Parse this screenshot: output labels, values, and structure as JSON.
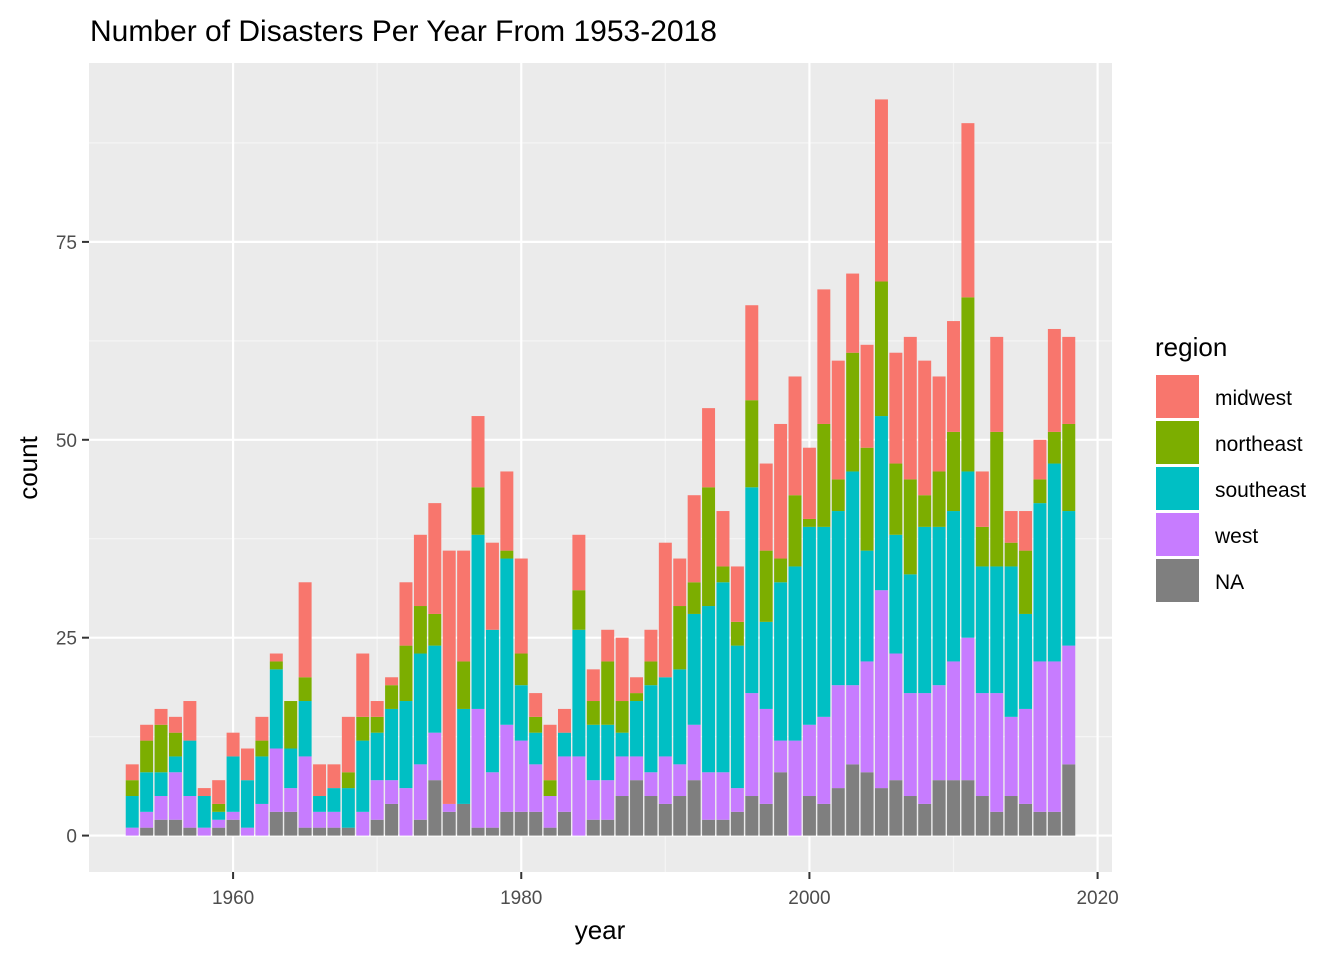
{
  "chart_data": {
    "type": "bar",
    "stacked": true,
    "title": "Number of Disasters Per Year From 1953-2018",
    "xlabel": "year",
    "ylabel": "count",
    "xlim": [
      1950,
      2021
    ],
    "ylim": [
      -4.6,
      97.6
    ],
    "x_ticks": [
      1960,
      1980,
      2000,
      2020
    ],
    "y_ticks": [
      0,
      25,
      50,
      75
    ],
    "grid": true,
    "legend": {
      "title": "region",
      "position": "right"
    },
    "series": [
      {
        "name": "NA",
        "color": "#7F7F7F"
      },
      {
        "name": "west",
        "color": "#C77CFF"
      },
      {
        "name": "southeast",
        "color": "#00BFC4"
      },
      {
        "name": "northeast",
        "color": "#7CAE00"
      },
      {
        "name": "midwest",
        "color": "#F8766D"
      }
    ],
    "legend_order": [
      "midwest",
      "northeast",
      "southeast",
      "west",
      "NA"
    ],
    "x": [
      1953,
      1954,
      1955,
      1956,
      1957,
      1958,
      1959,
      1960,
      1961,
      1962,
      1963,
      1964,
      1965,
      1966,
      1967,
      1968,
      1969,
      1970,
      1971,
      1972,
      1973,
      1974,
      1975,
      1976,
      1977,
      1978,
      1979,
      1980,
      1981,
      1982,
      1983,
      1984,
      1985,
      1986,
      1987,
      1988,
      1989,
      1990,
      1991,
      1992,
      1993,
      1994,
      1995,
      1996,
      1997,
      1998,
      1999,
      2000,
      2001,
      2002,
      2003,
      2004,
      2005,
      2006,
      2007,
      2008,
      2009,
      2010,
      2011,
      2012,
      2013,
      2014,
      2015,
      2016,
      2017,
      2018
    ],
    "values": {
      "NA": [
        0,
        1,
        2,
        2,
        1,
        0,
        1,
        2,
        0,
        0,
        3,
        3,
        1,
        1,
        1,
        1,
        0,
        2,
        4,
        0,
        2,
        7,
        3,
        4,
        1,
        1,
        3,
        3,
        3,
        1,
        3,
        0,
        2,
        2,
        5,
        7,
        5,
        4,
        5,
        7,
        2,
        2,
        3,
        5,
        4,
        8,
        0,
        5,
        4,
        6,
        9,
        8,
        6,
        7,
        5,
        4,
        7,
        7,
        7,
        5,
        3,
        5,
        4,
        3,
        3,
        9
      ],
      "west": [
        1,
        2,
        3,
        6,
        4,
        1,
        1,
        1,
        1,
        4,
        8,
        3,
        9,
        2,
        2,
        0,
        3,
        5,
        3,
        6,
        7,
        6,
        1,
        0,
        15,
        7,
        11,
        9,
        6,
        4,
        7,
        10,
        5,
        5,
        5,
        3,
        3,
        6,
        4,
        7,
        6,
        6,
        3,
        13,
        12,
        4,
        12,
        9,
        11,
        13,
        10,
        14,
        25,
        16,
        13,
        14,
        12,
        15,
        18,
        13,
        15,
        10,
        12,
        19,
        19,
        15
      ],
      "southeast": [
        4,
        5,
        3,
        2,
        7,
        4,
        1,
        7,
        6,
        6,
        10,
        5,
        7,
        2,
        3,
        5,
        9,
        6,
        9,
        11,
        14,
        11,
        0,
        12,
        22,
        18,
        21,
        7,
        4,
        0,
        3,
        16,
        7,
        7,
        3,
        7,
        11,
        10,
        12,
        14,
        21,
        24,
        18,
        26,
        11,
        20,
        22,
        25,
        24,
        22,
        27,
        14,
        22,
        15,
        15,
        21,
        20,
        19,
        21,
        16,
        16,
        19,
        12,
        20,
        25,
        17
      ],
      "northeast": [
        2,
        4,
        6,
        3,
        0,
        0,
        1,
        0,
        0,
        2,
        1,
        6,
        3,
        0,
        0,
        2,
        3,
        2,
        3,
        7,
        6,
        4,
        0,
        6,
        6,
        0,
        1,
        4,
        2,
        2,
        0,
        5,
        3,
        8,
        4,
        1,
        3,
        0,
        8,
        4,
        15,
        2,
        3,
        11,
        9,
        3,
        9,
        1,
        13,
        4,
        15,
        13,
        17,
        9,
        12,
        4,
        7,
        10,
        22,
        5,
        17,
        3,
        8,
        3,
        4,
        11
      ],
      "midwest": [
        2,
        2,
        2,
        2,
        5,
        1,
        3,
        3,
        4,
        3,
        1,
        0,
        12,
        4,
        3,
        7,
        8,
        2,
        1,
        8,
        9,
        14,
        32,
        14,
        9,
        11,
        10,
        12,
        3,
        7,
        3,
        7,
        4,
        4,
        8,
        2,
        4,
        17,
        6,
        11,
        10,
        7,
        7,
        12,
        11,
        17,
        15,
        9,
        17,
        15,
        10,
        13,
        23,
        14,
        18,
        17,
        12,
        14,
        22,
        7,
        12,
        4,
        5,
        5,
        13,
        11
      ]
    }
  }
}
